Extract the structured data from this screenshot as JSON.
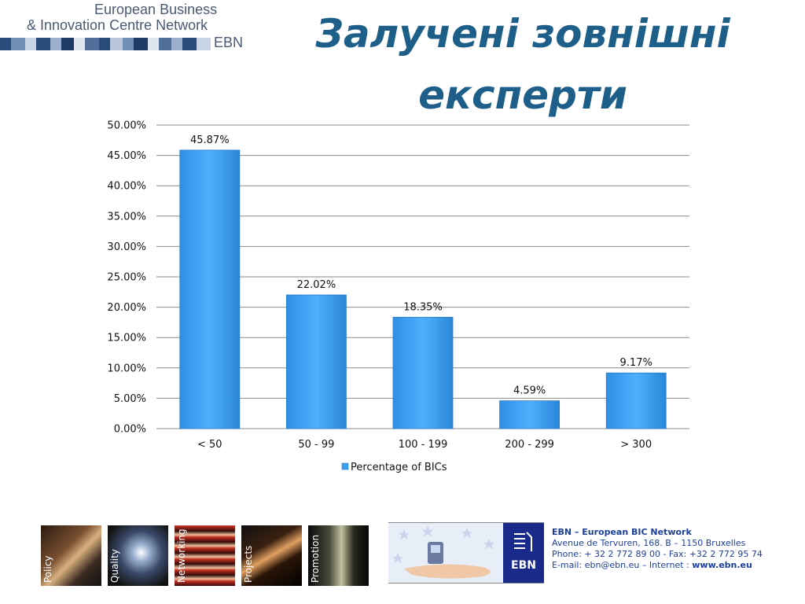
{
  "header": {
    "logo_line1": "European Business",
    "logo_line2": "& Innovation Centre Network",
    "logo_abbrev": "EBN",
    "title_line1": "Залучені зовнішні",
    "title_line2": "експерти"
  },
  "chart_data": {
    "type": "bar",
    "categories": [
      "< 50",
      "50 - 99",
      "100 - 199",
      "200 - 299",
      "> 300"
    ],
    "series": [
      {
        "name": "Percentage of BICs",
        "values": [
          45.87,
          22.02,
          18.35,
          4.59,
          9.17
        ]
      }
    ],
    "data_labels": [
      "45.87%",
      "22.02%",
      "18.35%",
      "4.59%",
      "9.17%"
    ],
    "ylim": [
      0,
      50
    ],
    "yticks": [
      "0.00%",
      "5.00%",
      "10.00%",
      "15.00%",
      "20.00%",
      "25.00%",
      "30.00%",
      "35.00%",
      "40.00%",
      "45.00%",
      "50.00%"
    ],
    "grid": true,
    "legend_position": "bottom",
    "bar_color": "#3a9ff0"
  },
  "footer": {
    "tiles": [
      "Policy",
      "Quality",
      "Networking",
      "Projects",
      "Promotion"
    ],
    "banner_logo": "EBN",
    "contact": {
      "name": "EBN – European BIC Network",
      "address": "Avenue de Tervuren, 168.  B – 1150 Bruxelles",
      "phone": "Phone: + 32 2 772 89 00 - Fax: +32 2 772 95 74",
      "email_prefix": "E-mail: ebn@ebn.eu – Internet : ",
      "website": "www.ebn.eu"
    }
  }
}
